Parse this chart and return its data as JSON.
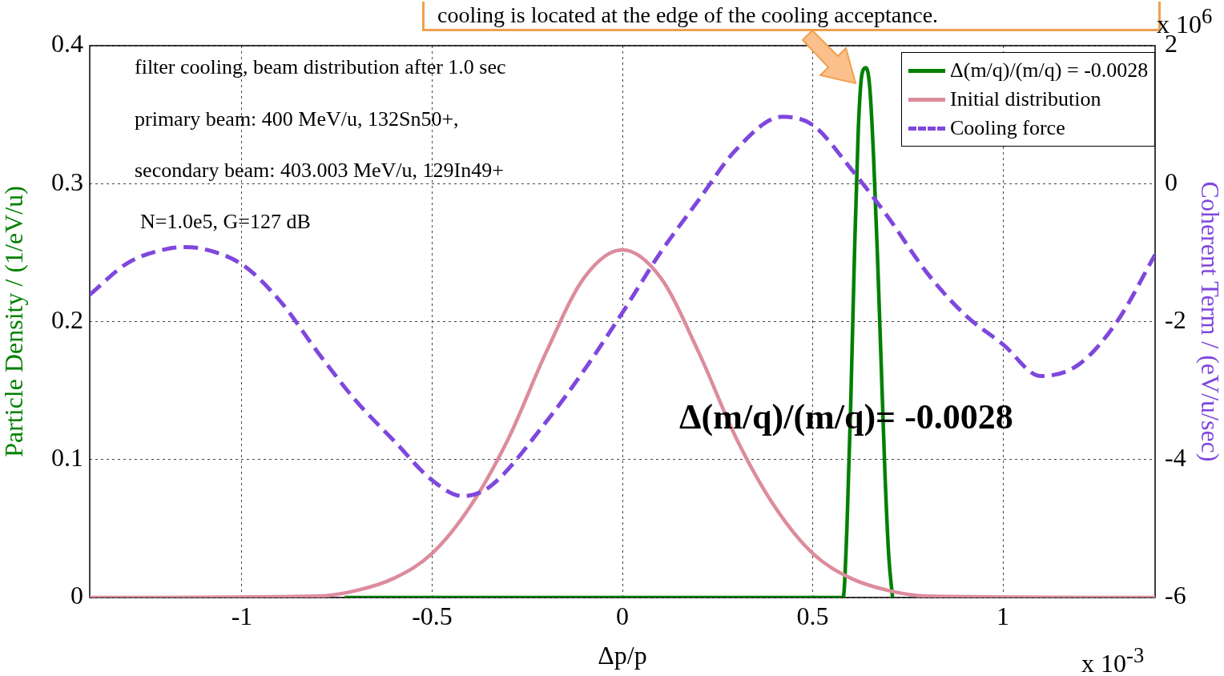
{
  "chart_data": {
    "type": "line",
    "xlabel": "Δp/p",
    "ylabel": "Particle Density / (1/eV/u)",
    "y2label": "Coherent Term / (eV/u/sec)",
    "xlim": [
      -1.4,
      1.4
    ],
    "xticks": [
      -1,
      -0.5,
      0,
      0.5,
      1
    ],
    "ylim": [
      0,
      0.4
    ],
    "yticks": [
      0,
      0.1,
      0.2,
      0.3,
      0.4
    ],
    "y2lim": [
      -6,
      2
    ],
    "y2ticks": [
      -6,
      -4,
      -2,
      0,
      2
    ],
    "grid": true,
    "legend": "top right",
    "marker": "none",
    "line_style": "solid",
    "annotations": [
      "filter cooling, beam distribution after 1.0 sec",
      "primary beam: 400 MeV/u, 132Sn50+,",
      "secondary beam: 403.003 MeV/u, 129In49+",
      "N=1.0e5, G=127 dB",
      "Δ(m/q)/(m/q)= -0.0028",
      "cooling is located at the edge of the cooling acceptance.",
      "x 10$^{6}$",
      "x 10$^{-3}$"
    ],
    "series": [
      {
        "name": "Δ(m/q)/(m/q) = -0.0028",
        "color": "#008000",
        "x": [
          -0.73,
          0.58,
          0.59,
          0.6,
          0.61,
          0.62,
          0.63,
          0.64,
          0.65,
          0.66,
          0.67,
          0.68,
          0.69,
          0.7,
          0.71
        ],
        "values": [
          0,
          0,
          0.05,
          0.14,
          0.25,
          0.34,
          0.38,
          0.384,
          0.37,
          0.32,
          0.25,
          0.17,
          0.09,
          0.03,
          0
        ]
      },
      {
        "name": "Initial distribution",
        "color": "#dc8c9c",
        "x": [
          -1.4,
          -0.8,
          -0.7,
          -0.6,
          -0.5,
          -0.4,
          -0.3,
          -0.2,
          -0.1,
          0,
          0.1,
          0.2,
          0.3,
          0.4,
          0.5,
          0.6,
          0.7,
          0.8,
          1.4
        ],
        "values": [
          0,
          0.001,
          0.005,
          0.014,
          0.032,
          0.066,
          0.115,
          0.178,
          0.232,
          0.252,
          0.232,
          0.178,
          0.115,
          0.066,
          0.032,
          0.014,
          0.005,
          0.001,
          0
        ]
      },
      {
        "name": "Cooling force",
        "color": "#7f47dd",
        "axis": "y2",
        "line_style": "dashed",
        "x": [
          -1.4,
          -1.3,
          -1.2,
          -1.15,
          -1.1,
          -1,
          -0.9,
          -0.8,
          -0.7,
          -0.6,
          -0.5,
          -0.42,
          -0.35,
          -0.2,
          -0.1,
          0,
          0.1,
          0.2,
          0.3,
          0.42,
          0.5,
          0.6,
          0.7,
          0.8,
          0.9,
          1,
          1.1,
          1.2,
          1.3,
          1.4
        ],
        "values": [
          -1.61,
          -1.15,
          -0.95,
          -0.92,
          -0.95,
          -1.17,
          -1.7,
          -2.45,
          -3.15,
          -3.73,
          -4.3,
          -4.53,
          -4.4,
          -3.45,
          -2.7,
          -1.87,
          -1.0,
          -0.24,
          0.5,
          0.97,
          0.85,
          0.22,
          -0.5,
          -1.29,
          -1.9,
          -2.33,
          -2.79,
          -2.62,
          -2.0,
          -1.03
        ]
      }
    ]
  }
}
